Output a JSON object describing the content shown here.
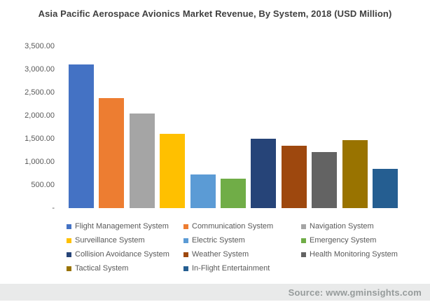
{
  "title": "Asia Pacific Aerospace Avionics Market Revenue, By System, 2018 (USD Million)",
  "source": "Source: www.gminsights.com",
  "chart_data": {
    "type": "bar",
    "title": "Asia Pacific Aerospace Avionics Market Revenue, By System, 2018 (USD Million)",
    "unit": "USD Million",
    "categories": [
      "Flight Management System",
      "Communication System",
      "Navigation System",
      "Surveillance System",
      "Electric System",
      "Emergency System",
      "Collision Avoidance System",
      "Weather System",
      "Health Monitoring System",
      "Tactical System",
      "In-Flight Entertainment"
    ],
    "values": [
      3100,
      2375,
      2050,
      1610,
      720,
      630,
      1505,
      1355,
      1205,
      1465,
      845
    ],
    "colors": [
      "#4472C4",
      "#ED7D31",
      "#A5A5A5",
      "#FFC000",
      "#5B9BD5",
      "#70AD47",
      "#264478",
      "#9E480E",
      "#636363",
      "#997300",
      "#255E91"
    ],
    "xlabel": "",
    "ylabel": "",
    "ylim": [
      0,
      3500
    ],
    "ytick_step": 500,
    "ytick_labels": [
      "3,500.00",
      "3,000.00",
      "2,500.00",
      "2,000.00",
      "1,500.00",
      "1,000.00",
      "500.00",
      "-"
    ],
    "grid": false,
    "legend_position": "bottom",
    "legend_columns": 3
  }
}
